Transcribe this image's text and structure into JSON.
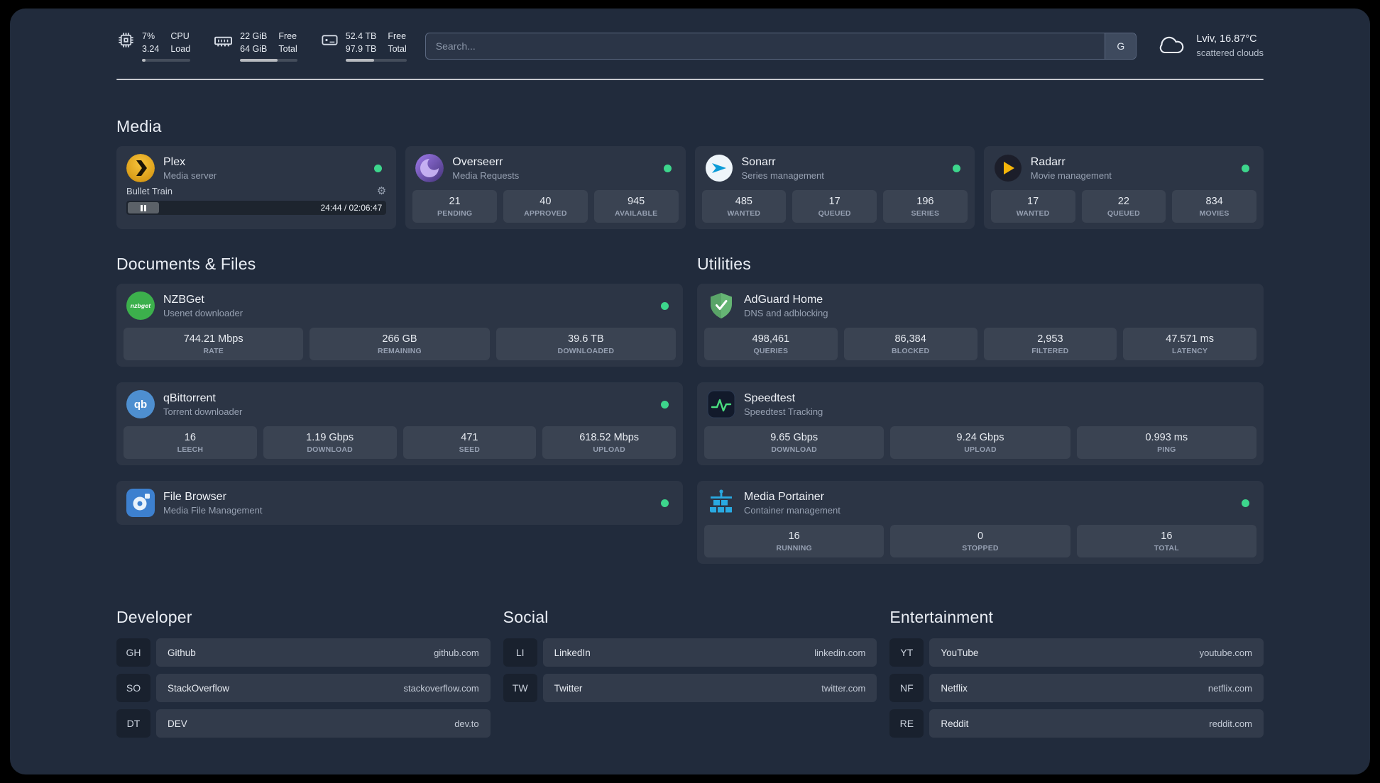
{
  "theme": {
    "status_online": "#3dd68c"
  },
  "topbar": {
    "cpu": {
      "value1": "7%",
      "value2": "3.24",
      "label1": "CPU",
      "label2": "Load",
      "bar": 7
    },
    "memory": {
      "value1": "22 GiB",
      "value2": "64 GiB",
      "label1": "Free",
      "label2": "Total",
      "bar": 66
    },
    "disk": {
      "value1": "52.4 TB",
      "value2": "97.9 TB",
      "label1": "Free",
      "label2": "Total",
      "bar": 47
    },
    "search": {
      "placeholder": "Search...",
      "button": "G"
    },
    "weather": {
      "location": "Lviv, 16.87°C",
      "condition": "scattered clouds"
    }
  },
  "groups": {
    "media": {
      "title": "Media",
      "services": [
        {
          "icon": "plex",
          "name": "Plex",
          "subtitle": "Media server",
          "online": true,
          "player": {
            "title": "Bullet Train",
            "time": "24:44 / 02:06:47"
          }
        },
        {
          "icon": "overseerr",
          "name": "Overseerr",
          "subtitle": "Media Requests",
          "online": true,
          "stats": [
            {
              "value": "21",
              "label": "PENDING"
            },
            {
              "value": "40",
              "label": "APPROVED"
            },
            {
              "value": "945",
              "label": "AVAILABLE"
            }
          ]
        },
        {
          "icon": "sonarr",
          "name": "Sonarr",
          "subtitle": "Series management",
          "online": true,
          "stats": [
            {
              "value": "485",
              "label": "WANTED"
            },
            {
              "value": "17",
              "label": "QUEUED"
            },
            {
              "value": "196",
              "label": "SERIES"
            }
          ]
        },
        {
          "icon": "radarr",
          "name": "Radarr",
          "subtitle": "Movie management",
          "online": true,
          "stats": [
            {
              "value": "17",
              "label": "WANTED"
            },
            {
              "value": "22",
              "label": "QUEUED"
            },
            {
              "value": "834",
              "label": "MOVIES"
            }
          ]
        }
      ]
    },
    "documents": {
      "title": "Documents & Files",
      "services": [
        {
          "icon": "nzbget",
          "name": "NZBGet",
          "subtitle": "Usenet downloader",
          "online": true,
          "stats": [
            {
              "value": "744.21 Mbps",
              "label": "RATE"
            },
            {
              "value": "266 GB",
              "label": "REMAINING"
            },
            {
              "value": "39.6 TB",
              "label": "DOWNLOADED"
            }
          ]
        },
        {
          "icon": "qbittorrent",
          "name": "qBittorrent",
          "subtitle": "Torrent downloader",
          "online": true,
          "stats": [
            {
              "value": "16",
              "label": "LEECH"
            },
            {
              "value": "1.19 Gbps",
              "label": "DOWNLOAD"
            },
            {
              "value": "471",
              "label": "SEED"
            },
            {
              "value": "618.52 Mbps",
              "label": "UPLOAD"
            }
          ]
        },
        {
          "icon": "filebrowser",
          "name": "File Browser",
          "subtitle": "Media File Management",
          "online": true,
          "stats": []
        }
      ]
    },
    "utilities": {
      "title": "Utilities",
      "services": [
        {
          "icon": "adguard",
          "name": "AdGuard Home",
          "subtitle": "DNS and adblocking",
          "online": false,
          "stats": [
            {
              "value": "498,461",
              "label": "QUERIES"
            },
            {
              "value": "86,384",
              "label": "BLOCKED"
            },
            {
              "value": "2,953",
              "label": "FILTERED"
            },
            {
              "value": "47.571 ms",
              "label": "LATENCY"
            }
          ]
        },
        {
          "icon": "speedtest",
          "name": "Speedtest",
          "subtitle": "Speedtest Tracking",
          "online": false,
          "stats": [
            {
              "value": "9.65 Gbps",
              "label": "DOWNLOAD"
            },
            {
              "value": "9.24 Gbps",
              "label": "UPLOAD"
            },
            {
              "value": "0.993 ms",
              "label": "PING"
            }
          ]
        },
        {
          "icon": "portainer",
          "name": "Media Portainer",
          "subtitle": "Container management",
          "online": true,
          "stats": [
            {
              "value": "16",
              "label": "RUNNING"
            },
            {
              "value": "0",
              "label": "STOPPED"
            },
            {
              "value": "16",
              "label": "TOTAL"
            }
          ]
        }
      ]
    }
  },
  "bookmarks": [
    {
      "title": "Developer",
      "items": [
        {
          "abbr": "GH",
          "name": "Github",
          "url": "github.com"
        },
        {
          "abbr": "SO",
          "name": "StackOverflow",
          "url": "stackoverflow.com"
        },
        {
          "abbr": "DT",
          "name": "DEV",
          "url": "dev.to"
        }
      ]
    },
    {
      "title": "Social",
      "items": [
        {
          "abbr": "LI",
          "name": "LinkedIn",
          "url": "linkedin.com"
        },
        {
          "abbr": "TW",
          "name": "Twitter",
          "url": "twitter.com"
        }
      ]
    },
    {
      "title": "Entertainment",
      "items": [
        {
          "abbr": "YT",
          "name": "YouTube",
          "url": "youtube.com"
        },
        {
          "abbr": "NF",
          "name": "Netflix",
          "url": "netflix.com"
        },
        {
          "abbr": "RE",
          "name": "Reddit",
          "url": "reddit.com"
        }
      ]
    }
  ]
}
